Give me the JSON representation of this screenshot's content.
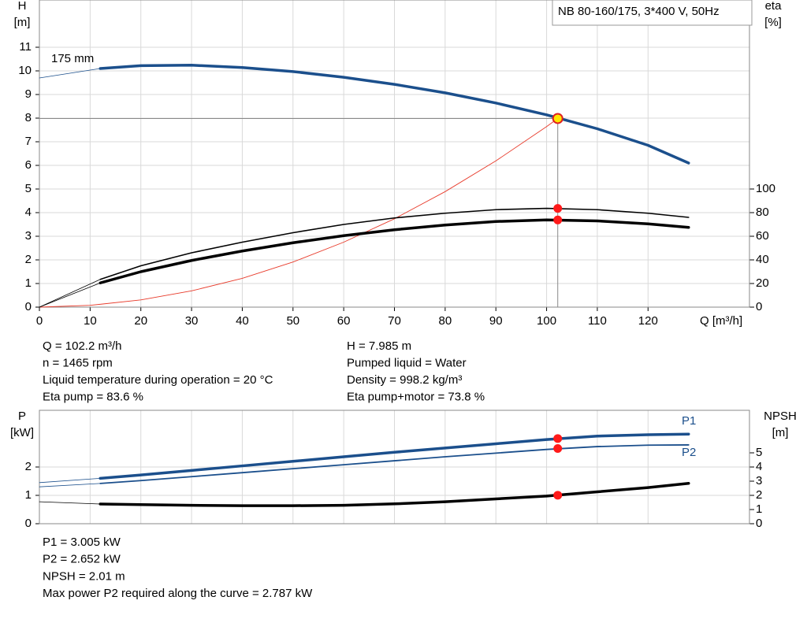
{
  "header_box": "NB 80-160/175, 3*400 V, 50Hz",
  "chart_data": [
    {
      "type": "line",
      "curve_label": "175 mm",
      "ylabel": "H",
      "yunit": "[m]",
      "y2label": "eta",
      "y2unit": "[%]",
      "xlabel": "Q [m³/h]",
      "xlim": [
        0,
        140
      ],
      "xticks": [
        0,
        10,
        20,
        30,
        40,
        50,
        60,
        70,
        80,
        90,
        100,
        110,
        120
      ],
      "ylim": [
        0,
        13
      ],
      "yticks": [
        0,
        1,
        2,
        3,
        4,
        5,
        6,
        7,
        8,
        9,
        10,
        11
      ],
      "y2lim": [
        0,
        260
      ],
      "y2ticks": [
        0,
        20,
        40,
        60,
        80,
        100
      ],
      "grid": true,
      "x": [
        0,
        12,
        20,
        30,
        40,
        50,
        60,
        70,
        80,
        90,
        100,
        110,
        120,
        128
      ],
      "series": [
        {
          "color": "#1b4f8c",
          "values": [
            9.7,
            10.1,
            10.22,
            10.24,
            10.14,
            9.97,
            9.73,
            9.43,
            9.07,
            8.64,
            8.14,
            7.55,
            6.85,
            6.1
          ]
        },
        {
          "color": "#000000",
          "axis": "y2",
          "values": [
            0,
            23.5,
            35,
            46,
            55,
            63,
            70,
            75.5,
            79.5,
            82.5,
            83.6,
            82.5,
            79.5,
            76
          ]
        },
        {
          "color": "#000000",
          "axis": "y2",
          "values": [
            0,
            20.5,
            30,
            39.5,
            47.5,
            54.5,
            60.5,
            65.5,
            69.5,
            72.5,
            73.8,
            73,
            70.5,
            67.5
          ]
        }
      ],
      "system_curve": {
        "color": "#e83a2a",
        "x": [
          0,
          10,
          20,
          30,
          40,
          50,
          60,
          70,
          80,
          90,
          100,
          102.2
        ],
        "values": [
          0,
          0.076,
          0.306,
          0.688,
          1.22,
          1.91,
          2.75,
          3.74,
          4.89,
          6.19,
          7.64,
          7.985
        ]
      },
      "duty_point": {
        "x": 102.2,
        "y": [
          7.985
        ],
        "y2": [
          83.6,
          73.8
        ]
      }
    },
    {
      "type": "line",
      "ylabel": "P",
      "yunit": "[kW]",
      "y2label": "NPSH",
      "y2unit": "[m]",
      "xlim": [
        0,
        140
      ],
      "ylim": [
        0,
        4
      ],
      "yticks": [
        0,
        1,
        2
      ],
      "y2lim": [
        0,
        8
      ],
      "y2ticks": [
        0,
        1,
        2,
        3,
        4,
        5
      ],
      "grid": true,
      "x": [
        0,
        12,
        20,
        30,
        40,
        50,
        60,
        70,
        80,
        90,
        100,
        110,
        120,
        128
      ],
      "series": [
        {
          "name": "P1",
          "color": "#1b4f8c",
          "values": [
            1.45,
            1.6,
            1.72,
            1.88,
            2.04,
            2.2,
            2.36,
            2.52,
            2.67,
            2.82,
            2.97,
            3.09,
            3.14,
            3.16
          ]
        },
        {
          "name": "P2",
          "color": "#1b4f8c",
          "values": [
            1.3,
            1.42,
            1.52,
            1.66,
            1.8,
            1.94,
            2.08,
            2.22,
            2.36,
            2.49,
            2.62,
            2.72,
            2.77,
            2.78
          ]
        },
        {
          "color": "#000000",
          "axis": "y2",
          "values": [
            1.55,
            1.39,
            1.35,
            1.3,
            1.27,
            1.27,
            1.3,
            1.4,
            1.55,
            1.75,
            1.95,
            2.25,
            2.55,
            2.85
          ]
        }
      ],
      "duty_point": {
        "x": 102.2,
        "y": [
          3.005,
          2.652
        ],
        "y2": [
          2.01
        ]
      }
    }
  ],
  "info_top_left": [
    "Q = 102.2 m³/h",
    "n = 1465 rpm",
    "Liquid temperature during operation = 20 °C",
    "Eta pump = 83.6 %"
  ],
  "info_top_right": [
    "H = 7.985 m",
    "Pumped liquid = Water",
    "Density = 998.2 kg/m³",
    "Eta pump+motor = 73.8 %"
  ],
  "info_bottom": [
    "P1 = 3.005 kW",
    "P2 = 2.652 kW",
    "NPSH = 2.01 m",
    "Max power P2 required along the curve = 2.787 kW"
  ]
}
